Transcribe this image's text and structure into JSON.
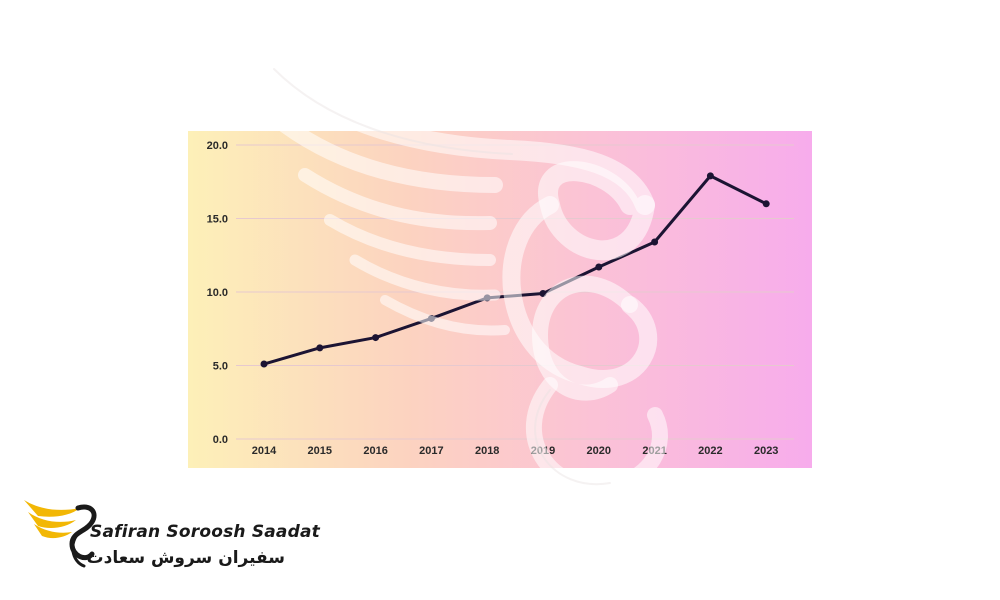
{
  "chart_data": {
    "type": "line",
    "title": "",
    "xlabel": "",
    "ylabel": "",
    "categories": [
      "2014",
      "2015",
      "2016",
      "2017",
      "2018",
      "2019",
      "2020",
      "2021",
      "2022",
      "2023"
    ],
    "series": [
      {
        "values": [
          5.1,
          6.2,
          6.9,
          8.2,
          9.6,
          9.9,
          11.7,
          13.4,
          17.9,
          16.0
        ]
      }
    ],
    "ylim": [
      0,
      20
    ],
    "yticks": [
      "0.0",
      "5.0",
      "10.0",
      "15.0",
      "20.0"
    ],
    "grid": true,
    "line_color": "#1c1433",
    "background_gradient": [
      "#fdf0b8",
      "#f7acec"
    ]
  },
  "brand": {
    "name_en": "Safiran Soroosh Saadat",
    "name_fa": "سفیران سروش سعادت",
    "accent_color": "#f2b705",
    "logo_icon": "swan-wing-icon"
  },
  "watermark": {
    "icon": "swan-wing-icon"
  }
}
